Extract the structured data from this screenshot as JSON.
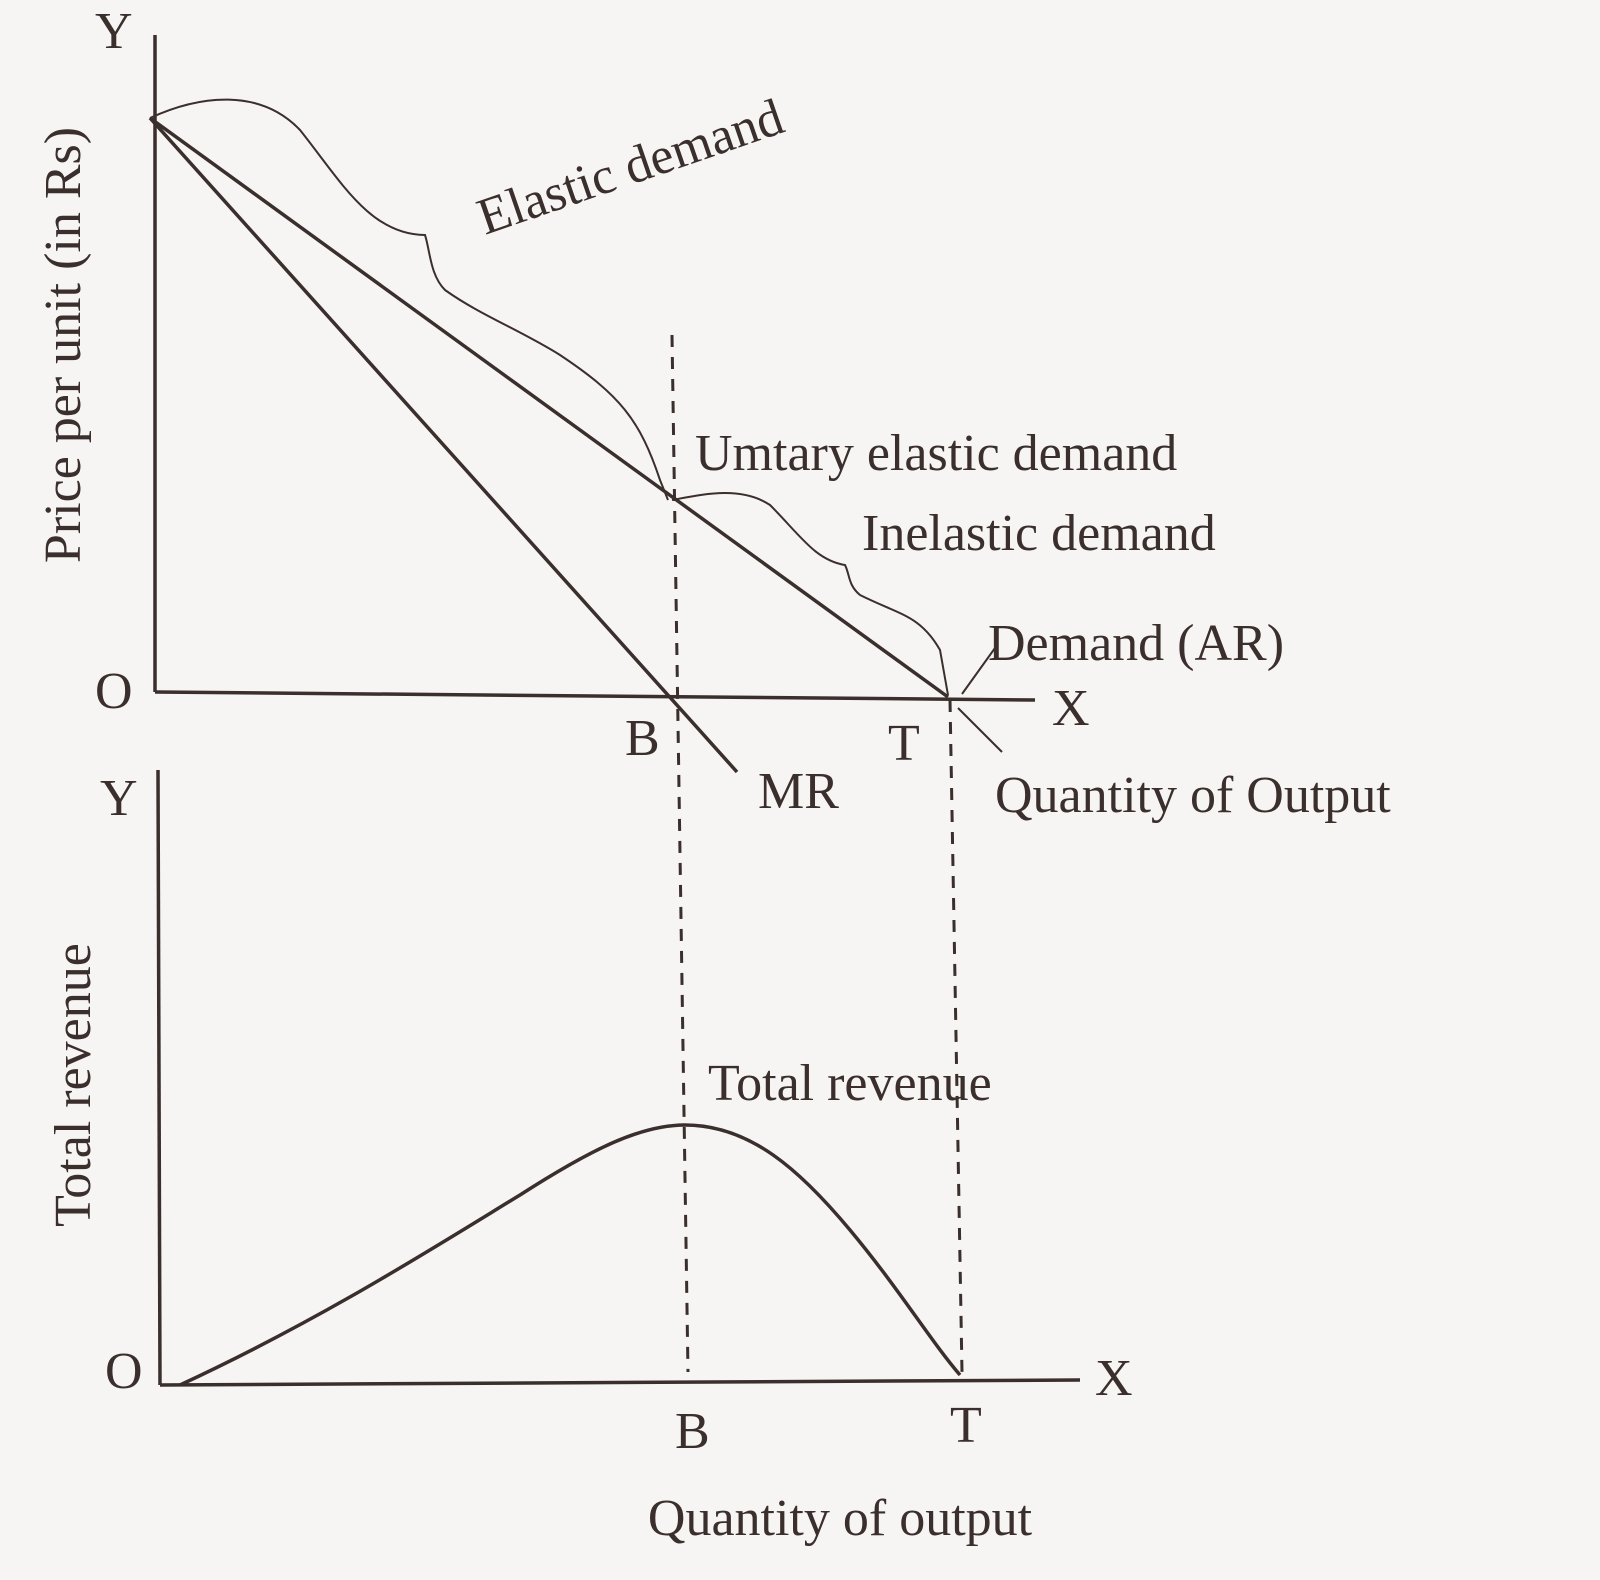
{
  "top_panel": {
    "y_axis_letter": "Y",
    "y_axis_title": "Price per unit (in Rs)",
    "origin": "O",
    "x_axis_letter": "X",
    "point_b": "B",
    "point_t": "T",
    "mr_label": "MR",
    "x_axis_title": "Quantity of Output",
    "elastic_label": "Elastic demand",
    "unitary_label": "Umtary elastic demand",
    "inelastic_label": "Inelastic demand",
    "demand_label": "Demand (AR)"
  },
  "bottom_panel": {
    "y_axis_letter": "Y",
    "y_axis_title": "Total revenue",
    "origin": "O",
    "x_axis_letter": "X",
    "point_b": "B",
    "point_t": "T",
    "curve_label": "Total revenue",
    "x_axis_title": "Quantity of output"
  }
}
